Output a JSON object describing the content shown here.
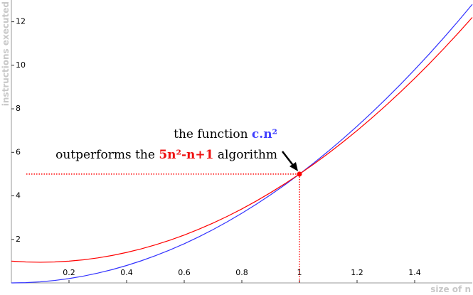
{
  "chart_data": {
    "type": "line",
    "x": [
      0,
      0.05,
      0.1,
      0.15,
      0.2,
      0.25,
      0.3,
      0.35,
      0.4,
      0.45,
      0.5,
      0.55,
      0.6,
      0.65,
      0.7,
      0.75,
      0.8,
      0.85,
      0.9,
      0.95,
      1,
      1.05,
      1.1,
      1.15,
      1.2,
      1.25,
      1.3,
      1.35,
      1.4,
      1.45,
      1.5,
      1.55,
      1.6
    ],
    "series": [
      {
        "color": "#3333ff",
        "values": [
          0,
          0.0125,
          0.05,
          0.1125,
          0.2,
          0.3125,
          0.45,
          0.6125,
          0.8,
          1.0125,
          1.25,
          1.5125,
          1.8,
          2.1125,
          2.45,
          2.8125,
          3.2,
          3.6125,
          4.05,
          4.5125,
          5,
          5.5125,
          6.05,
          6.6125,
          7.2,
          7.8125,
          8.45,
          9.1125,
          9.8,
          10.5125,
          11.25,
          12.0125,
          12.8
        ]
      },
      {
        "color": "#ff0000",
        "values": [
          1,
          0.9625,
          0.95,
          0.9625,
          1.0,
          1.0625,
          1.15,
          1.2625,
          1.4,
          1.5625,
          1.75,
          1.9625,
          2.2,
          2.4625,
          2.75,
          3.0625,
          3.4,
          3.7625,
          4.15,
          4.5625,
          5,
          5.4625,
          5.95,
          6.4625,
          7.0,
          7.5625,
          8.15,
          8.7625,
          9.4,
          10.0625,
          10.75,
          11.4625,
          12.2
        ]
      }
    ],
    "highlight": {
      "x": 1,
      "y": 5,
      "color": "#ff0000"
    },
    "annotations": [
      {
        "parts": [
          "the function ",
          "c.n²"
        ]
      },
      {
        "parts": [
          "outperforms the ",
          "5n²-n+1",
          " algorithm"
        ]
      }
    ],
    "xlabel": "size of n",
    "ylabel": "instructions executed",
    "xlim": [
      0,
      1.6
    ],
    "ylim": [
      0,
      13
    ],
    "xticks": [
      0.2,
      0.4,
      0.6,
      0.8,
      1,
      1.2,
      1.4
    ],
    "yticks": [
      2,
      4,
      6,
      8,
      10,
      12
    ]
  }
}
